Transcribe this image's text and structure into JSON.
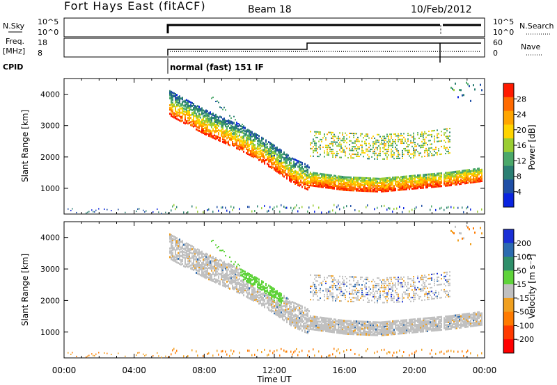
{
  "header": {
    "station": "Fort Hays East (fitACF)",
    "beam": "Beam 18",
    "date": "10/Feb/2012"
  },
  "strips": {
    "nsky": {
      "label": "N.Sky",
      "ticks": [
        "10^5",
        "10^0"
      ],
      "right_ticks": [
        "10^5",
        "10^0"
      ],
      "right_label": "N.Search"
    },
    "freq": {
      "label_top": "Freq.",
      "label_bottom": "[MHz]",
      "ticks": [
        "18",
        "8"
      ],
      "right_ticks": [
        "60",
        "0"
      ],
      "right_label": "Nave"
    },
    "cpid": {
      "label": "CPID",
      "text": "normal (fast) 151 IF"
    }
  },
  "time_axis": {
    "label": "Time UT",
    "ticks": [
      "00:00",
      "04:00",
      "08:00",
      "12:00",
      "16:00",
      "20:00",
      "00:00"
    ]
  },
  "colors": {
    "power": [
      "#0a24e0",
      "#1f4fa6",
      "#2b7f73",
      "#4ba86a",
      "#9acd32",
      "#ffd400",
      "#ffa500",
      "#ff6a00",
      "#ff1a00"
    ],
    "velocity": [
      "#1a2fd6",
      "#2c6bb0",
      "#2f8f6a",
      "#5fd33a",
      "#c0c0c0",
      "#f0a020",
      "#ff7a00",
      "#ff3a00",
      "#ff0000"
    ],
    "ground": "#c6c6c6"
  },
  "chart_data": [
    {
      "type": "heatmap",
      "name": "power",
      "ylabel": "Slant Range [km]",
      "xlabel": "",
      "x_range_hours": [
        0,
        24
      ],
      "ylim": [
        180,
        4500
      ],
      "yticks": [
        1000,
        2000,
        3000,
        4000
      ],
      "colorbar": {
        "label": "Power [dB]",
        "ticks": [
          4,
          8,
          12,
          16,
          20,
          24,
          28
        ],
        "range": [
          0,
          32
        ]
      },
      "main_echo_track": {
        "x_hours": [
          6,
          7,
          8,
          9,
          10,
          11,
          12,
          13,
          14,
          16,
          18,
          20,
          22,
          24
        ],
        "y_km": [
          3750,
          3450,
          3150,
          2900,
          2650,
          2350,
          2000,
          1600,
          1350,
          1200,
          1150,
          1250,
          1350,
          1500
        ]
      },
      "upper_band_km": {
        "x_hours": [
          14,
          16,
          18,
          20,
          22
        ],
        "y_km": [
          2400,
          2350,
          2300,
          2350,
          2500
        ]
      },
      "data_gap_hours": [
        21.5,
        21.6
      ]
    },
    {
      "type": "heatmap",
      "name": "velocity",
      "ylabel": "Slant Range [km]",
      "xlabel": "Time UT",
      "x_range_hours": [
        0,
        24
      ],
      "ylim": [
        180,
        4500
      ],
      "yticks": [
        1000,
        2000,
        3000,
        4000
      ],
      "colorbar": {
        "label": "Velocity [m s⁻¹]",
        "ticks": [
          200,
          100,
          50,
          15,
          -15,
          -50,
          -100,
          -200
        ]
      }
    }
  ]
}
